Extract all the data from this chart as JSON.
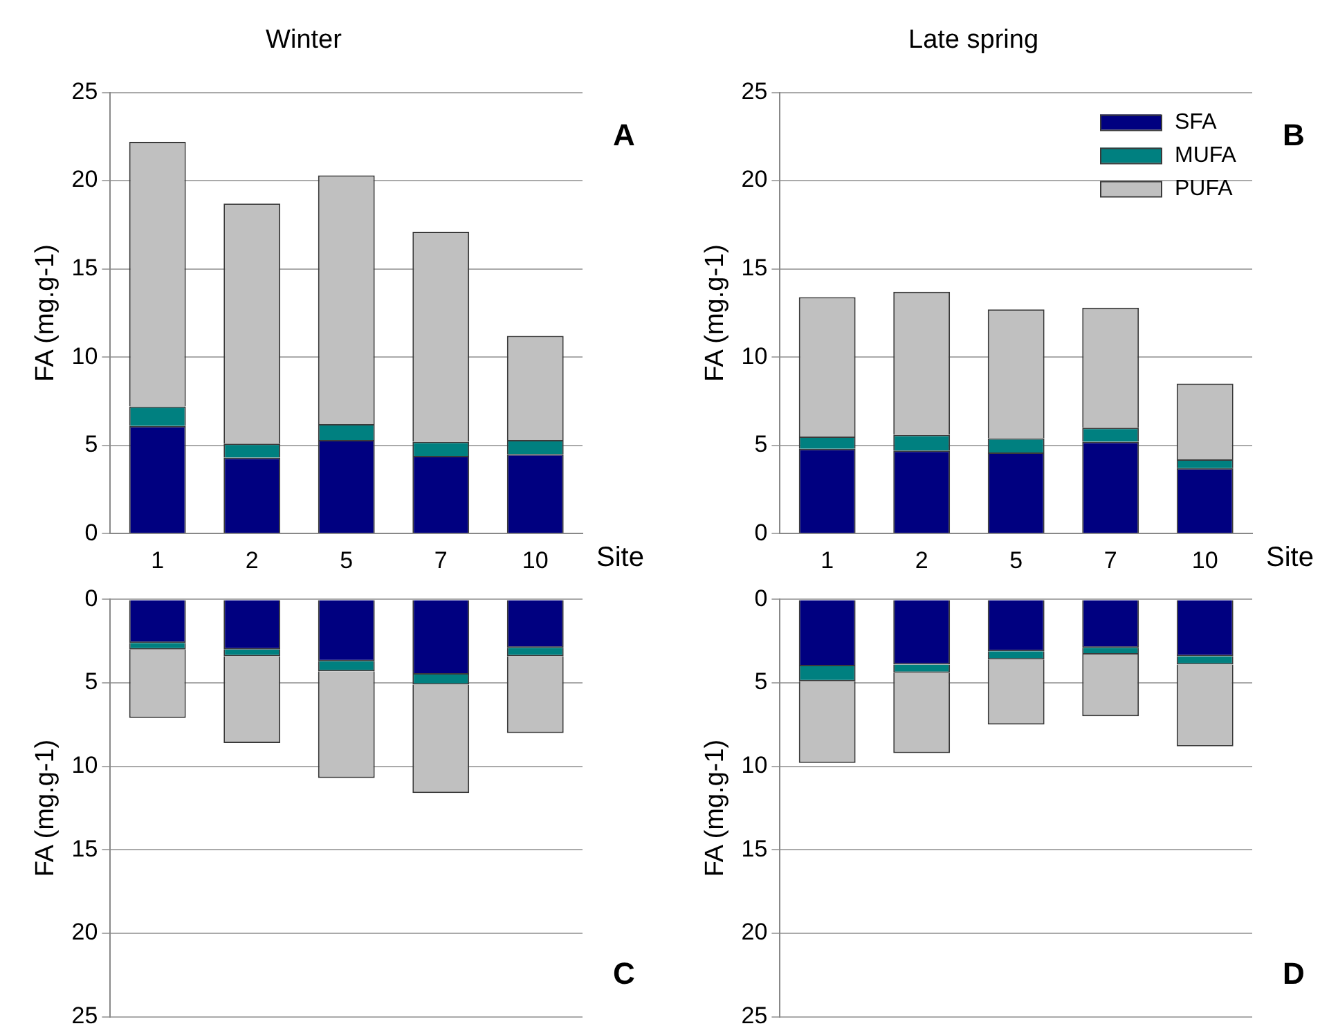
{
  "chart_data": [
    {
      "type": "bar",
      "title": "Winter",
      "xlabel": "Site",
      "ylabel": "FA (mg.g-1)",
      "categories": [
        "1",
        "2",
        "5",
        "7",
        "10"
      ],
      "stacked": true,
      "ylim": [
        0,
        25
      ],
      "yticks": [
        0,
        5,
        10,
        15,
        20,
        25
      ],
      "grid": "y",
      "annotations": [
        "A"
      ],
      "series": [
        {
          "color": "#000080",
          "values": [
            6.1,
            4.3,
            5.3,
            4.4,
            4.5
          ]
        },
        {
          "color": "#008080",
          "values": [
            1.1,
            0.8,
            0.9,
            0.8,
            0.8
          ]
        },
        {
          "color": "#c0c0c0",
          "values": [
            15.0,
            13.6,
            14.1,
            11.9,
            5.9
          ]
        }
      ]
    },
    {
      "type": "bar",
      "title": "Late spring",
      "xlabel": "Site",
      "ylabel": "FA (mg.g-1)",
      "categories": [
        "1",
        "2",
        "5",
        "7",
        "10"
      ],
      "stacked": true,
      "ylim": [
        0,
        25
      ],
      "yticks": [
        0,
        5,
        10,
        15,
        20,
        25
      ],
      "grid": "y",
      "legend": "top right",
      "annotations": [
        "B"
      ],
      "series": [
        {
          "name": "SFA",
          "color": "#000080",
          "values": [
            4.8,
            4.7,
            4.6,
            5.2,
            3.7
          ]
        },
        {
          "name": "MUFA",
          "color": "#008080",
          "values": [
            0.7,
            0.9,
            0.8,
            0.8,
            0.5
          ]
        },
        {
          "name": "PUFA",
          "color": "#c0c0c0",
          "values": [
            7.9,
            8.1,
            7.3,
            6.8,
            4.3
          ]
        }
      ]
    },
    {
      "type": "bar",
      "ylabel": "FA (mg.g-1)",
      "categories": [
        "1",
        "2",
        "5",
        "7",
        "10"
      ],
      "stacked": true,
      "ylim": [
        25,
        0
      ],
      "yticks": [
        0,
        5,
        10,
        15,
        20,
        25
      ],
      "grid": "y",
      "tick_labels": "y",
      "annotations": [
        "C"
      ],
      "series": [
        {
          "color": "#000080",
          "values": [
            2.6,
            3.0,
            3.7,
            4.5,
            2.9
          ]
        },
        {
          "color": "#008080",
          "values": [
            0.4,
            0.4,
            0.6,
            0.6,
            0.5
          ]
        },
        {
          "color": "#c0c0c0",
          "values": [
            4.1,
            5.2,
            6.4,
            6.5,
            4.6
          ]
        }
      ]
    },
    {
      "type": "bar",
      "ylabel": "FA (mg.g-1)",
      "categories": [
        "1",
        "2",
        "5",
        "7",
        "10"
      ],
      "stacked": true,
      "ylim": [
        25,
        0
      ],
      "yticks": [
        0,
        5,
        10,
        15,
        20,
        25
      ],
      "grid": "y",
      "tick_labels": "y",
      "annotations": [
        "D"
      ],
      "series": [
        {
          "color": "#000080",
          "values": [
            4.0,
            3.9,
            3.1,
            2.9,
            3.4
          ]
        },
        {
          "color": "#008080",
          "values": [
            0.9,
            0.5,
            0.5,
            0.4,
            0.5
          ]
        },
        {
          "color": "#c0c0c0",
          "values": [
            4.9,
            4.8,
            3.9,
            3.7,
            4.9
          ]
        }
      ]
    }
  ]
}
